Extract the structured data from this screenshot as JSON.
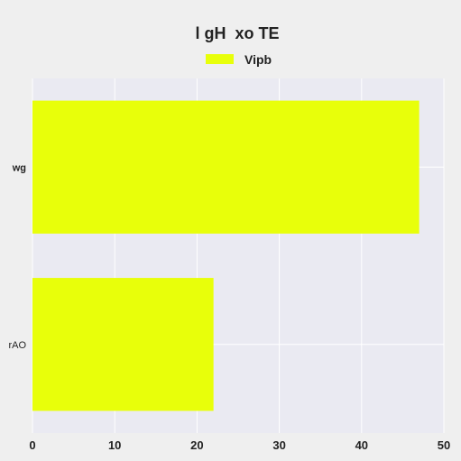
{
  "chart_data": {
    "type": "bar",
    "orientation": "horizontal",
    "title": "l gH  xo TE",
    "xlabel": "",
    "ylabel": "",
    "categories": [
      "wg",
      "rAO"
    ],
    "category_label_styles": [
      "bold",
      "normal"
    ],
    "series": [
      {
        "name": "Vipb",
        "values": [
          47,
          22
        ],
        "color": "#e8ff0a"
      }
    ],
    "xlim": [
      0,
      50
    ],
    "xticks": [
      "0",
      "10",
      "20",
      "30",
      "40",
      "50"
    ],
    "xtick_values": [
      0,
      10,
      20,
      30,
      40,
      50
    ],
    "grid": true,
    "legend": "top-center",
    "colors": {
      "background": "#efefef",
      "plot_area": "#eaeaf2",
      "grid": "#ffffff",
      "text": "#222222"
    }
  }
}
